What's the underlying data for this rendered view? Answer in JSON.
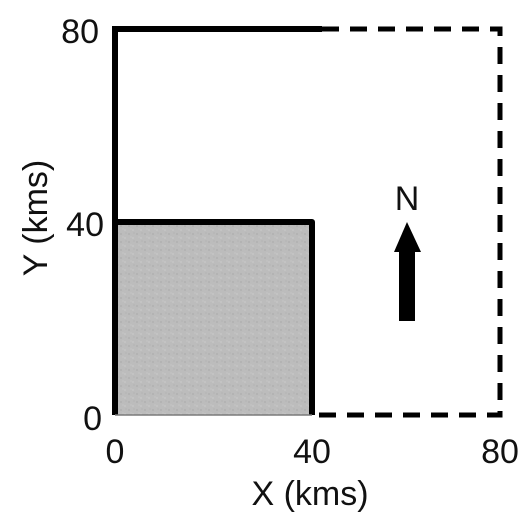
{
  "axes": {
    "x_label": "X (kms)",
    "y_label": "Y (kms)",
    "x_ticks": [
      "0",
      "40",
      "80"
    ],
    "y_ticks": [
      "80",
      "40",
      "0"
    ],
    "x_range": [
      0,
      80
    ],
    "y_range": [
      0,
      80
    ]
  },
  "compass": {
    "letter": "N",
    "icon": "north-arrow"
  },
  "colors": {
    "outline": "#000000",
    "shaded_region": "#bdbdbd"
  }
}
